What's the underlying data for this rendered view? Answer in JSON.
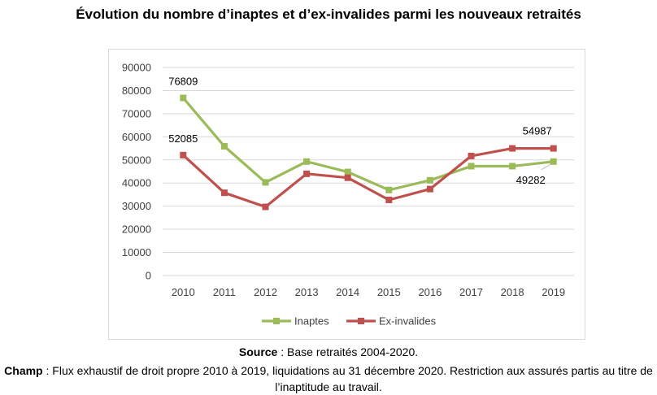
{
  "chart_data": {
    "type": "line",
    "title": "Évolution du nombre d’inaptes et d’ex-invalides parmi les nouveaux retraités",
    "categories": [
      "2010",
      "2011",
      "2012",
      "2013",
      "2014",
      "2015",
      "2016",
      "2017",
      "2018",
      "2019"
    ],
    "ylim": [
      0,
      90000
    ],
    "yticks": [
      "0",
      "10000",
      "20000",
      "30000",
      "40000",
      "50000",
      "60000",
      "70000",
      "80000",
      "90000"
    ],
    "ytick_values": [
      0,
      10000,
      20000,
      30000,
      40000,
      50000,
      60000,
      70000,
      80000,
      90000
    ],
    "series": [
      {
        "name": "Inaptes",
        "color": "#9bbb59",
        "values": [
          76809,
          55900,
          40300,
          49300,
          44800,
          37000,
          41200,
          47300,
          47300,
          49282
        ]
      },
      {
        "name": "Ex-invalides",
        "color": "#c0504d",
        "values": [
          52085,
          35800,
          29700,
          44000,
          42300,
          32700,
          37400,
          51700,
          55000,
          54987
        ]
      }
    ],
    "data_labels": [
      "76809",
      "52085",
      "54987",
      "49282"
    ],
    "grid": true,
    "legend": "bottom"
  },
  "notes": {
    "source_label": "Source",
    "source_text": " : Base retraités 2004-2020.",
    "champ_label": "Champ",
    "champ_text": " : Flux exhaustif de droit propre 2010 à 2019, liquidations au 31 décembre 2020. Restriction aux assurés partis au titre de l’inaptitude au travail."
  }
}
